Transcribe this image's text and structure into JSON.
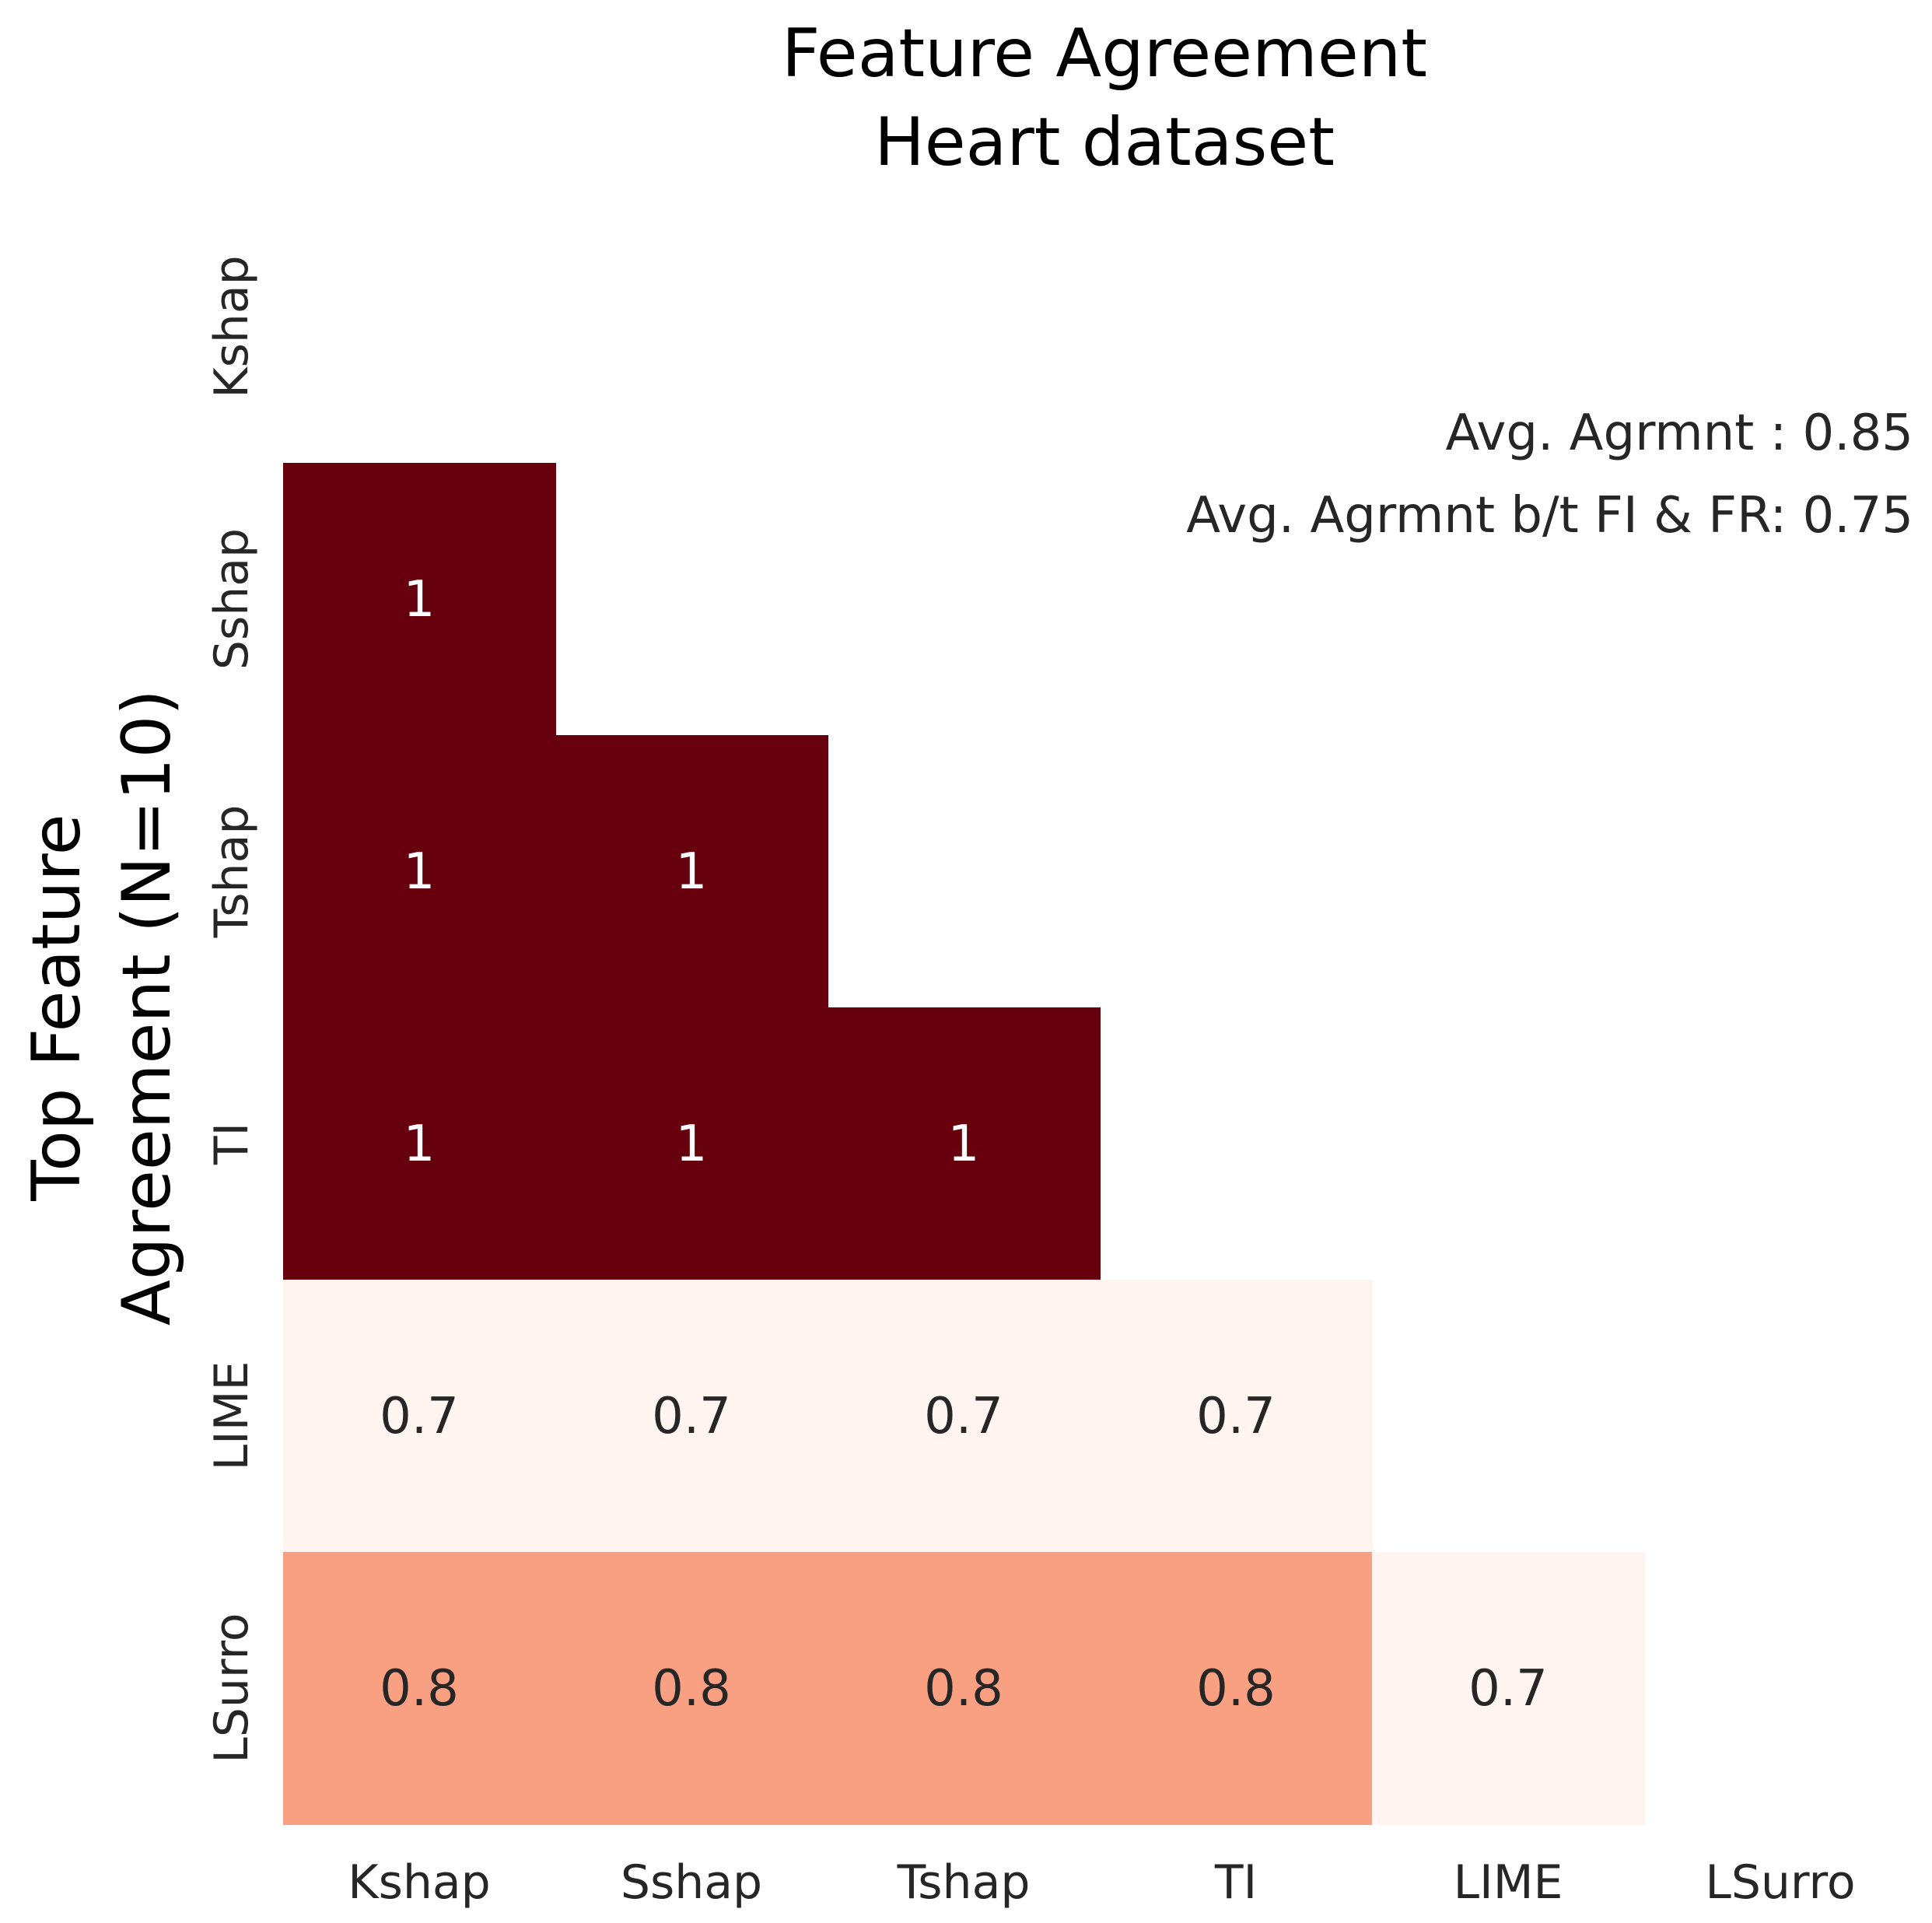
{
  "chart_data": {
    "type": "heatmap",
    "title": "Feature Agreement",
    "subtitle": "Heart dataset",
    "ylabel": "Top Feature\nAgreement (N=10)",
    "row_labels": [
      "Kshap",
      "Sshap",
      "Tshap",
      "TI",
      "LIME",
      "LSurro"
    ],
    "col_labels": [
      "Kshap",
      "Sshap",
      "Tshap",
      "TI",
      "LIME",
      "LSurro"
    ],
    "values": [
      [
        null,
        null,
        null,
        null,
        null,
        null
      ],
      [
        1,
        null,
        null,
        null,
        null,
        null
      ],
      [
        1,
        1,
        null,
        null,
        null,
        null
      ],
      [
        1,
        1,
        1,
        null,
        null,
        null
      ],
      [
        0.7,
        0.7,
        0.7,
        0.7,
        null,
        null
      ],
      [
        0.8,
        0.8,
        0.8,
        0.8,
        0.7,
        null
      ]
    ],
    "cell_labels": [
      [
        null,
        null,
        null,
        null,
        null,
        null
      ],
      [
        "1",
        null,
        null,
        null,
        null,
        null
      ],
      [
        "1",
        "1",
        null,
        null,
        null,
        null
      ],
      [
        "1",
        "1",
        "1",
        null,
        null,
        null
      ],
      [
        "0.7",
        "0.7",
        "0.7",
        "0.7",
        null,
        null
      ],
      [
        "0.8",
        "0.8",
        "0.8",
        "0.8",
        "0.7",
        null
      ]
    ],
    "color_scale": {
      "min": 0.7,
      "max": 1.0,
      "colormap": "Reds"
    },
    "annotations": [
      "Avg. Agrmnt : 0.85",
      "Avg. Agrmnt b/t FI & FR: 0.75"
    ],
    "grid": false,
    "legend": "none"
  },
  "colors": {
    "high": "#67000d",
    "mid": "#f9a082",
    "low": "#fff4ef",
    "text_dark": "#262626",
    "text_light": "#ffffff"
  }
}
